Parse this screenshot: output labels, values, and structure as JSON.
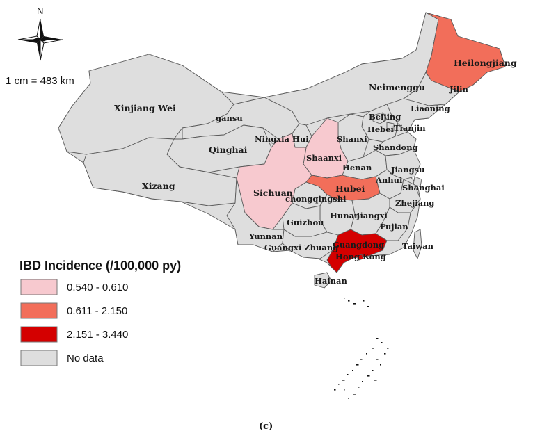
{
  "compass": {
    "north_letter": "N",
    "icon": "north-arrow-compass-rose"
  },
  "scale": {
    "text": "1 cm = 483 km"
  },
  "legend": {
    "title": "IBD Incidence (/100,000 py)",
    "classes": [
      {
        "label": "0.540 - 0.610",
        "color": "#f7c9cf"
      },
      {
        "label": "0.611 - 2.150",
        "color": "#f26e5a"
      },
      {
        "label": "2.151 - 3.440",
        "color": "#d40000"
      },
      {
        "label": "No data",
        "color": "#dedede"
      }
    ]
  },
  "caption": "(c)",
  "provinces": [
    {
      "name": "Xinjiang Wei",
      "class": "No data"
    },
    {
      "name": "gansu",
      "class": "No data"
    },
    {
      "name": "Qinghai",
      "class": "No data"
    },
    {
      "name": "Xizang",
      "class": "No data"
    },
    {
      "name": "Neimenggu",
      "class": "No data"
    },
    {
      "name": "Heilongjiang",
      "class": "0.611 - 2.150"
    },
    {
      "name": "Jilin",
      "class": "No data"
    },
    {
      "name": "Liaoning",
      "class": "No data"
    },
    {
      "name": "Beijing",
      "class": "No data"
    },
    {
      "name": "Hebei",
      "class": "No data"
    },
    {
      "name": "Tianjin",
      "class": "No data"
    },
    {
      "name": "Shandong",
      "class": "No data"
    },
    {
      "name": "Ningxia Hui",
      "class": "No data"
    },
    {
      "name": "Shanxi",
      "class": "No data"
    },
    {
      "name": "Shaanxi",
      "class": "0.540 - 0.610"
    },
    {
      "name": "Henan",
      "class": "No data"
    },
    {
      "name": "Jiangsu",
      "class": "No data"
    },
    {
      "name": "Anhui",
      "class": "No data"
    },
    {
      "name": "Shanghai",
      "class": "No data"
    },
    {
      "name": "Sichuan",
      "class": "0.540 - 0.610"
    },
    {
      "name": "chongqingshi",
      "class": "No data"
    },
    {
      "name": "Hubei",
      "class": "0.611 - 2.150"
    },
    {
      "name": "Zhejiang",
      "class": "No data"
    },
    {
      "name": "Hunan",
      "class": "No data"
    },
    {
      "name": "Jiangxi",
      "class": "No data"
    },
    {
      "name": "Fujian",
      "class": "No data"
    },
    {
      "name": "Guizhou",
      "class": "No data"
    },
    {
      "name": "Yunnan",
      "class": "No data"
    },
    {
      "name": "Guangxi Zhuang",
      "class": "No data"
    },
    {
      "name": "Guangdong",
      "class": "2.151 - 3.440"
    },
    {
      "name": "Hong Kong",
      "class": "2.151 - 3.440"
    },
    {
      "name": "Taiwan",
      "class": "No data"
    },
    {
      "name": "Hainan",
      "class": "No data"
    }
  ]
}
